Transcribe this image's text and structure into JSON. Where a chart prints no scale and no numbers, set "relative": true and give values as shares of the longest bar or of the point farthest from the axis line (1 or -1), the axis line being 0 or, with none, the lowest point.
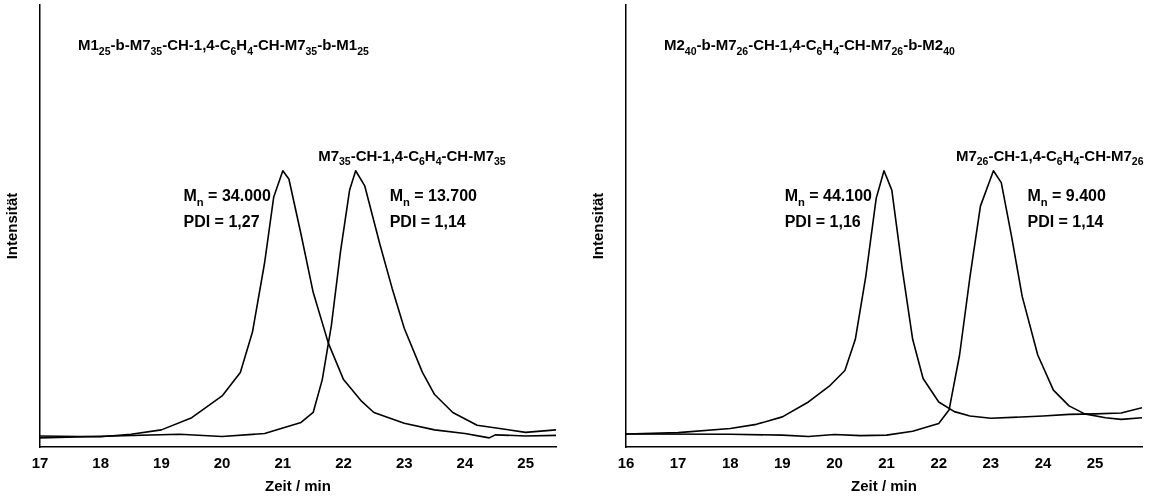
{
  "chart_data": [
    {
      "type": "line",
      "title": "M1$_{25}$-b-M7$_{35}$-CH-1,4-C$_{6}$H$_{4}$-CH-M7$_{35}$-b-M1$_{25}$",
      "xlabel": "Zeit / min",
      "ylabel": "Intensität",
      "relative": true,
      "xlim": [
        17,
        25.5
      ],
      "xticks": [
        17,
        18,
        19,
        20,
        21,
        22,
        23,
        24,
        25
      ],
      "annotations": [
        "M$_{n}$ = 34.000\nPDI = 1,27",
        "M$_{n}$ = 13.700\nPDI = 1,14"
      ],
      "series": [
        {
          "color": "#000000",
          "x": [
            17,
            18,
            18.5,
            19,
            19.5,
            20,
            20.3,
            20.5,
            20.7,
            20.85,
            21.0,
            21.1,
            21.3,
            21.5,
            21.75,
            22.0,
            22.3,
            22.5,
            23,
            23.5,
            24,
            24.4,
            24.5,
            25,
            25.5
          ],
          "values": [
            0.04,
            0.037,
            0.046,
            0.062,
            0.106,
            0.185,
            0.27,
            0.416,
            0.667,
            0.905,
            1.0,
            0.97,
            0.77,
            0.56,
            0.376,
            0.244,
            0.165,
            0.125,
            0.086,
            0.062,
            0.049,
            0.033,
            0.044,
            0.04,
            0.042
          ]
        },
        {
          "name": "M7$_{35}$-CH-1,4-C$_{6}$H$_{4}$-CH-M7$_{35}$",
          "color": "#000000",
          "x": [
            17,
            19.3,
            20,
            20.7,
            21.3,
            21.5,
            21.65,
            21.8,
            21.95,
            22.1,
            22.2,
            22.35,
            22.6,
            22.8,
            23.0,
            23.3,
            23.5,
            23.8,
            24.2,
            24.6,
            25,
            25.5
          ],
          "values": [
            0.033,
            0.046,
            0.038,
            0.049,
            0.089,
            0.125,
            0.244,
            0.44,
            0.707,
            0.93,
            1.0,
            0.945,
            0.733,
            0.575,
            0.43,
            0.27,
            0.19,
            0.125,
            0.079,
            0.066,
            0.053,
            0.062
          ]
        }
      ]
    },
    {
      "type": "line",
      "title": "M2$_{40}$-b-M7$_{26}$-CH-1,4-C$_{6}$H$_{4}$-CH-M7$_{26}$-b-M2$_{40}$",
      "xlabel": "Zeit / min",
      "ylabel": "Intensität",
      "relative": true,
      "xlim": [
        16,
        25.9
      ],
      "xticks": [
        16,
        17,
        18,
        19,
        20,
        21,
        22,
        23,
        24,
        25
      ],
      "annotations": [
        "M$_{n}$ = 44.100\nPDI = 1,16",
        "M$_{n}$ = 9.400\nPDI = 1,14"
      ],
      "series": [
        {
          "color": "#000000",
          "x": [
            16,
            17,
            18,
            18.5,
            19,
            19.5,
            19.9,
            20.2,
            20.4,
            20.6,
            20.8,
            20.95,
            21.1,
            21.3,
            21.5,
            21.7,
            22.0,
            22.3,
            22.6,
            23,
            24,
            24.5,
            25,
            25.5,
            25.9
          ],
          "values": [
            0.047,
            0.052,
            0.067,
            0.082,
            0.109,
            0.163,
            0.22,
            0.277,
            0.39,
            0.617,
            0.9,
            1.0,
            0.93,
            0.645,
            0.39,
            0.248,
            0.163,
            0.128,
            0.112,
            0.104,
            0.112,
            0.118,
            0.12,
            0.123,
            0.142
          ]
        },
        {
          "name": "M7$_{26}$-CH-1,4-C$_{6}$H$_{4}$-CH-M7$_{26}$",
          "color": "#000000",
          "x": [
            16,
            18,
            19,
            19.5,
            20,
            20.5,
            21,
            21.5,
            22.0,
            22.2,
            22.4,
            22.6,
            22.8,
            23.05,
            23.2,
            23.4,
            23.6,
            23.9,
            24.2,
            24.5,
            24.8,
            25.2,
            25.5,
            25.9
          ],
          "values": [
            0.047,
            0.046,
            0.043,
            0.038,
            0.045,
            0.041,
            0.043,
            0.057,
            0.085,
            0.135,
            0.333,
            0.617,
            0.872,
            1.0,
            0.957,
            0.76,
            0.546,
            0.333,
            0.206,
            0.149,
            0.12,
            0.106,
            0.1,
            0.106
          ]
        }
      ]
    }
  ]
}
